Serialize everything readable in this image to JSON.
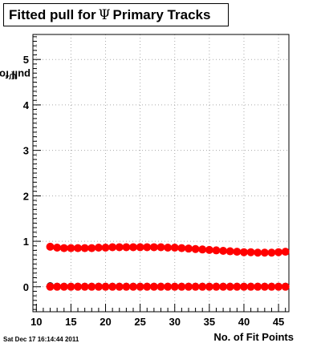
{
  "chart_data": {
    "type": "scatter",
    "title_prefix": "Fitted pull for",
    "title_symbol": "Ψ",
    "title_suffix": "Primary Tracks",
    "ylabel_prefix": "pull for",
    "ylabel_symbol": "Ψ",
    "xlabel": "No. of Fit Points",
    "xlim": [
      9.5,
      46.5
    ],
    "ylim": [
      -0.55,
      5.55
    ],
    "x_ticks": [
      10,
      15,
      20,
      25,
      30,
      35,
      40,
      45
    ],
    "y_ticks": [
      0,
      1,
      2,
      3,
      4,
      5
    ],
    "grid": true,
    "legend": "none",
    "series": [
      {
        "role": "mean",
        "color": "#000000",
        "x": [
          12,
          13,
          14,
          15,
          16,
          17,
          18,
          19,
          20,
          21,
          22,
          23,
          24,
          25,
          26,
          27,
          28,
          29,
          30,
          31,
          32,
          33,
          34,
          35,
          36,
          37,
          38,
          39,
          40,
          41,
          42,
          43,
          44,
          45,
          46
        ],
        "values": [
          0.02,
          0.01,
          0.01,
          0.01,
          0.01,
          0.01,
          0.01,
          0.01,
          0.01,
          0.01,
          0.01,
          0.01,
          0.01,
          0.01,
          0.01,
          0.01,
          0.01,
          0.01,
          0.01,
          0.01,
          0.01,
          0.01,
          0.01,
          0.01,
          0.01,
          0.01,
          0.01,
          0.01,
          0.01,
          0.01,
          0.01,
          0.01,
          0.01,
          0.01,
          0.01
        ]
      },
      {
        "role": "mean-fit",
        "color": "#ff0000",
        "x": [
          12,
          13,
          14,
          15,
          16,
          17,
          18,
          19,
          20,
          21,
          22,
          23,
          24,
          25,
          26,
          27,
          28,
          29,
          30,
          31,
          32,
          33,
          34,
          35,
          36,
          37,
          38,
          39,
          40,
          41,
          42,
          43,
          44,
          45,
          46
        ],
        "values": [
          0.0,
          0.0,
          0.0,
          0.0,
          0.0,
          0.0,
          0.0,
          0.0,
          0.0,
          0.0,
          0.0,
          0.0,
          0.0,
          0.0,
          0.0,
          0.0,
          0.0,
          0.0,
          0.0,
          0.0,
          0.0,
          0.0,
          0.0,
          0.0,
          0.0,
          0.0,
          0.0,
          0.0,
          0.0,
          0.0,
          0.0,
          0.0,
          0.0,
          0.0,
          0.0
        ]
      },
      {
        "role": "sigma",
        "color": "#000000",
        "x": [
          12,
          13,
          14,
          15,
          16,
          17,
          18,
          19,
          20,
          21,
          22,
          23,
          24,
          25,
          26,
          27,
          28,
          29,
          30,
          31,
          32,
          33,
          34,
          35,
          36,
          37,
          38,
          39,
          40,
          41,
          42,
          43,
          44,
          45,
          46
        ],
        "values": [
          0.88,
          0.86,
          0.85,
          0.85,
          0.85,
          0.85,
          0.85,
          0.86,
          0.86,
          0.87,
          0.87,
          0.87,
          0.87,
          0.87,
          0.87,
          0.87,
          0.87,
          0.86,
          0.86,
          0.85,
          0.84,
          0.83,
          0.82,
          0.81,
          0.8,
          0.79,
          0.78,
          0.77,
          0.76,
          0.76,
          0.75,
          0.75,
          0.75,
          0.76,
          0.77
        ]
      },
      {
        "role": "sigma-fit",
        "color": "#ff0000",
        "x": [
          12,
          13,
          14,
          15,
          16,
          17,
          18,
          19,
          20,
          21,
          22,
          23,
          24,
          25,
          26,
          27,
          28,
          29,
          30,
          31,
          32,
          33,
          34,
          35,
          36,
          37,
          38,
          39,
          40,
          41,
          42,
          43,
          44,
          45,
          46
        ],
        "values": [
          0.88,
          0.86,
          0.85,
          0.85,
          0.85,
          0.85,
          0.85,
          0.86,
          0.86,
          0.87,
          0.87,
          0.87,
          0.87,
          0.87,
          0.87,
          0.87,
          0.87,
          0.86,
          0.86,
          0.85,
          0.84,
          0.83,
          0.82,
          0.81,
          0.8,
          0.79,
          0.78,
          0.77,
          0.76,
          0.76,
          0.75,
          0.75,
          0.75,
          0.76,
          0.77
        ]
      }
    ]
  },
  "footer": {
    "timestamp": "Sat Dec 17 16:14:44 2011"
  }
}
